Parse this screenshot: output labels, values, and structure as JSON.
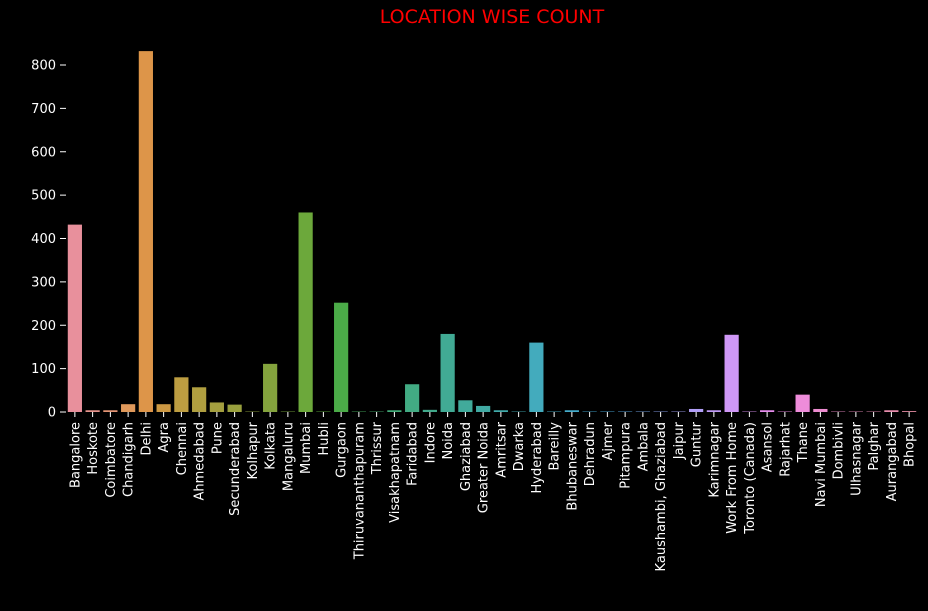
{
  "chart_data": {
    "type": "bar",
    "title": "LOCATION WISE COUNT",
    "title_color": "#ff0000",
    "xlabel": "",
    "ylabel": "",
    "ylim": [
      0,
      850
    ],
    "yticks": [
      0,
      100,
      200,
      300,
      400,
      500,
      600,
      700,
      800
    ],
    "grid": false,
    "background": "#000000",
    "categories": [
      "Bangalore",
      "Hoskote",
      "Coimbatore",
      "Chandigarh",
      "Delhi",
      "Agra",
      "Chennai",
      "Ahmedabad",
      "Pune",
      "Secunderabad",
      "Kolhapur",
      "Kolkata",
      "Mangaluru",
      "Mumbai",
      "Hubli",
      "Gurgaon",
      "Thiruvananthapuram",
      "Thrissur",
      "Visakhapatnam",
      "Faridabad",
      "Indore",
      "Noida",
      "Ghaziabad",
      "Greater Noida",
      "Amritsar",
      "Dwarka",
      "Hyderabad",
      "Bareilly",
      "Bhubaneswar",
      "Dehradun",
      "Ajmer",
      "Pitampura",
      "Ambala",
      "Kaushambi, Ghaziabad",
      "Jaipur",
      "Guntur",
      "Karimnagar",
      "Work From Home",
      "Toronto (Canada)",
      "Asansol",
      "Rajarhat",
      "Thane",
      "Navi Mumbai",
      "Dombivli",
      "Ulhasnagar",
      "Palghar",
      "Aurangabad",
      "Bhopal"
    ],
    "values": [
      432,
      4,
      4,
      18,
      832,
      18,
      80,
      57,
      22,
      17,
      1,
      111,
      1,
      460,
      1,
      252,
      1,
      1,
      4,
      64,
      5,
      180,
      27,
      14,
      4,
      1,
      160,
      1,
      4,
      1,
      1,
      1,
      1,
      1,
      1,
      7,
      4,
      178,
      1,
      4,
      1,
      40,
      7,
      1,
      1,
      1,
      4,
      2
    ],
    "colors": [
      "#e8909c",
      "#e6928a",
      "#e49575",
      "#e0995b",
      "#dd9549",
      "#cc9843",
      "#bd9d41",
      "#b09f40",
      "#a49f3f",
      "#99a03e",
      "#8fa13e",
      "#84a33d",
      "#78a53c",
      "#6ca83b",
      "#5caa3b",
      "#4bab48",
      "#46ab5e",
      "#44ab6d",
      "#43ab79",
      "#42ab83",
      "#42aa8c",
      "#41aa94",
      "#41aa9b",
      "#41aaa3",
      "#41abab",
      "#42abb4",
      "#43abbd",
      "#44acc5",
      "#45adcd",
      "#47aed8",
      "#4aafe3",
      "#5aaeec",
      "#77aaf1",
      "#8da7f4",
      "#a1a3f6",
      "#b29ff7",
      "#c19bf7",
      "#cf97f6",
      "#dd93f4",
      "#e98ef0",
      "#ef8de6",
      "#ee8cda",
      "#ed8cd0",
      "#ec8cc7",
      "#eb8dbe",
      "#ea8db6",
      "#e98eae",
      "#e88fa6"
    ]
  }
}
